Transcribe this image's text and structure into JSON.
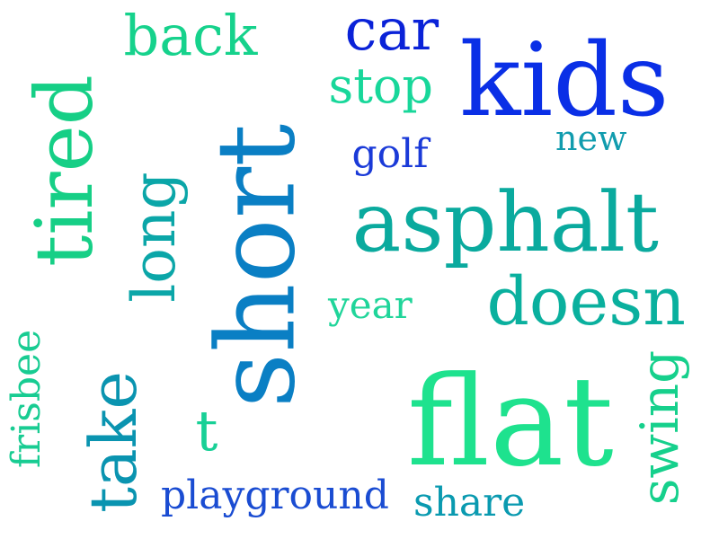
{
  "word_cloud": {
    "words": [
      {
        "text": "kids",
        "color": "#0a2fe6",
        "orientation": "horizontal"
      },
      {
        "text": "car",
        "color": "#0a22d8",
        "orientation": "horizontal"
      },
      {
        "text": "back",
        "color": "#16d28c",
        "orientation": "horizontal"
      },
      {
        "text": "stop",
        "color": "#18d79a",
        "orientation": "horizontal"
      },
      {
        "text": "tired",
        "color": "#16cf86",
        "orientation": "vertical"
      },
      {
        "text": "short",
        "color": "#0a7fc4",
        "orientation": "vertical"
      },
      {
        "text": "golf",
        "color": "#1a3ad8",
        "orientation": "horizontal"
      },
      {
        "text": "new",
        "color": "#119cae",
        "orientation": "horizontal"
      },
      {
        "text": "long",
        "color": "#0ba6a8",
        "orientation": "vertical"
      },
      {
        "text": "asphalt",
        "color": "#0aaa9e",
        "orientation": "horizontal"
      },
      {
        "text": "doesn",
        "color": "#0ab09e",
        "orientation": "horizontal"
      },
      {
        "text": "year",
        "color": "#20d59a",
        "orientation": "horizontal"
      },
      {
        "text": "frisbee",
        "color": "#18cc92",
        "orientation": "vertical"
      },
      {
        "text": "take",
        "color": "#0a94b0",
        "orientation": "vertical"
      },
      {
        "text": "flat",
        "color": "#1ee28e",
        "orientation": "horizontal"
      },
      {
        "text": "swing",
        "color": "#16d08c",
        "orientation": "vertical"
      },
      {
        "text": "t",
        "color": "#18d096",
        "orientation": "horizontal"
      },
      {
        "text": "playground",
        "color": "#1a4cd2",
        "orientation": "horizontal"
      },
      {
        "text": "share",
        "color": "#0a9ab0",
        "orientation": "horizontal"
      }
    ]
  }
}
